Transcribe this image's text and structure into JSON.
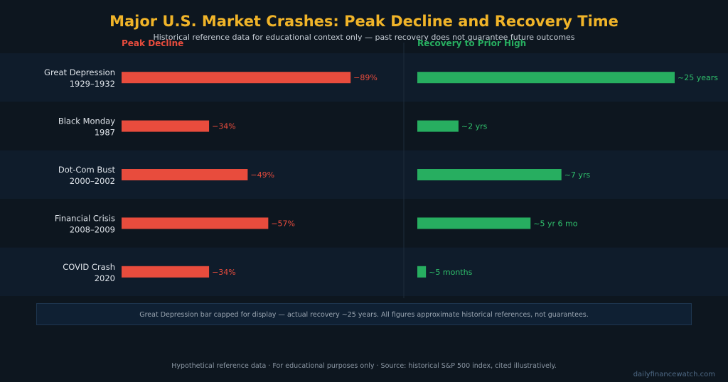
{
  "chart_data": {
    "type": "bar",
    "title": "Major U.S. Market Crashes: Peak Decline and Recovery Time",
    "subtitle": "Historical reference data for educational context only — past recovery does not guarantee future outcomes",
    "categories": [
      {
        "name": "Great Depression",
        "period": "1929–1932"
      },
      {
        "name": "Black Monday",
        "period": "1987"
      },
      {
        "name": "Dot-Com Bust",
        "period": "2000–2002"
      },
      {
        "name": "Financial Crisis",
        "period": "2008–2009"
      },
      {
        "name": "COVID Crash",
        "period": "2020"
      }
    ],
    "series": [
      {
        "name": "Peak Decline",
        "values": [
          89,
          34,
          49,
          57,
          34
        ],
        "labels": [
          "−89%",
          "−34%",
          "−49%",
          "−57%",
          "−34%"
        ],
        "color": "#e84c3d",
        "xlim": [
          0,
          100
        ]
      },
      {
        "name": "Recovery to Prior High",
        "values": [
          12.5,
          2,
          7,
          5.5,
          0.42
        ],
        "labels": [
          "~25 years",
          "~2 yrs",
          "~7 yrs",
          "~5 yr 6 mo",
          "~5 months"
        ],
        "color": "#27ae60",
        "xlim": [
          0,
          12.5
        ],
        "capped": [
          true,
          false,
          false,
          false,
          false
        ]
      }
    ],
    "grid": false,
    "note": "Great Depression bar capped for display — actual recovery ~25 years.  All figures approximate historical references, not guarantees."
  },
  "footer": "Hypothetical reference data · For educational purposes only · Source: historical S&P 500 index, cited illustratively.",
  "brand": "dailyfinancewatch.com",
  "colors": {
    "background": "#0d161f",
    "band": "#0f1c2b",
    "accent_title": "#f0b429"
  }
}
